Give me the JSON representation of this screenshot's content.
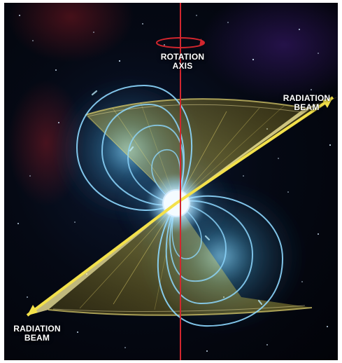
{
  "labels": {
    "rotation_axis": [
      "ROTATION",
      "AXIS"
    ],
    "beam_top": [
      "RADIATION",
      "BEAM"
    ],
    "beam_bottom": [
      "RADIATION",
      "BEAM"
    ]
  },
  "colors": {
    "background": "#050914",
    "axis": "#d2262e",
    "field_lines": "#8ed8ff",
    "field_glow": "#2f8ec7",
    "beam": "#f5e63d",
    "beam_shadow": "#d6b624",
    "star_core": "#f4fbff",
    "label": "#ffffff"
  },
  "icons": {
    "rotation_arrow": "rotation-arrow-icon",
    "radiation_arrow_top": "arrow-up-right-icon",
    "radiation_arrow_bottom": "arrow-down-left-icon"
  }
}
